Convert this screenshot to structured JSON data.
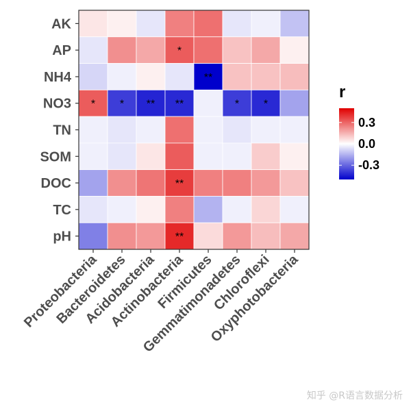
{
  "chart_data": {
    "type": "heatmap",
    "rows": [
      "AK",
      "AP",
      "NH4",
      "NO3",
      "TN",
      "SOM",
      "DOC",
      "TC",
      "pH"
    ],
    "columns": [
      "Proteobacteria",
      "Bacteroidetes",
      "Acidobacteria",
      "Actinobacteria",
      "Firmicutes",
      "Gemmatimonadetes",
      "Chloroflexi",
      "Oxyphotobacteria"
    ],
    "values": [
      [
        0.05,
        0.03,
        -0.05,
        0.25,
        0.28,
        -0.05,
        -0.03,
        -0.12
      ],
      [
        -0.05,
        0.22,
        0.17,
        0.32,
        0.28,
        0.12,
        0.17,
        0.03
      ],
      [
        -0.08,
        -0.03,
        0.03,
        -0.05,
        -0.5,
        0.12,
        0.12,
        0.13
      ],
      [
        0.32,
        -0.38,
        -0.43,
        -0.42,
        -0.03,
        -0.38,
        -0.42,
        -0.18
      ],
      [
        -0.03,
        -0.05,
        -0.03,
        0.28,
        -0.03,
        -0.05,
        -0.03,
        -0.03
      ],
      [
        -0.03,
        -0.05,
        0.05,
        0.32,
        -0.03,
        -0.03,
        0.1,
        0.03
      ],
      [
        -0.18,
        0.22,
        0.27,
        0.38,
        0.25,
        0.25,
        0.2,
        0.12
      ],
      [
        -0.05,
        -0.03,
        0.03,
        0.25,
        -0.15,
        -0.03,
        0.08,
        -0.03
      ],
      [
        -0.25,
        0.22,
        0.2,
        0.42,
        0.07,
        0.2,
        0.13,
        0.17
      ]
    ],
    "significance": [
      [
        "",
        "",
        "",
        "",
        "",
        "",
        "",
        ""
      ],
      [
        "",
        "",
        "",
        "*",
        "",
        "",
        "",
        ""
      ],
      [
        "",
        "",
        "",
        "",
        "**",
        "",
        "",
        ""
      ],
      [
        "*",
        "*",
        "**",
        "**",
        "",
        "*",
        "*",
        ""
      ],
      [
        "",
        "",
        "",
        "",
        "",
        "",
        "",
        ""
      ],
      [
        "",
        "",
        "",
        "",
        "",
        "",
        "",
        ""
      ],
      [
        "",
        "",
        "",
        "**",
        "",
        "",
        "",
        ""
      ],
      [
        "",
        "",
        "",
        "",
        "",
        "",
        "",
        ""
      ],
      [
        "",
        "",
        "",
        "**",
        "",
        "",
        "",
        ""
      ]
    ],
    "legend": {
      "title": "r",
      "ticks": [
        {
          "value": 0.3,
          "label": "0.3"
        },
        {
          "value": 0.0,
          "label": "0.0"
        },
        {
          "value": -0.3,
          "label": "-0.3"
        }
      ],
      "range": [
        -0.5,
        0.5
      ],
      "low_color": "#0000cc",
      "mid_color": "#ffffff",
      "high_color": "#e00000",
      "placement": "right"
    },
    "grid": false
  },
  "watermark": {
    "text": "知乎 @R语言数据分析"
  }
}
